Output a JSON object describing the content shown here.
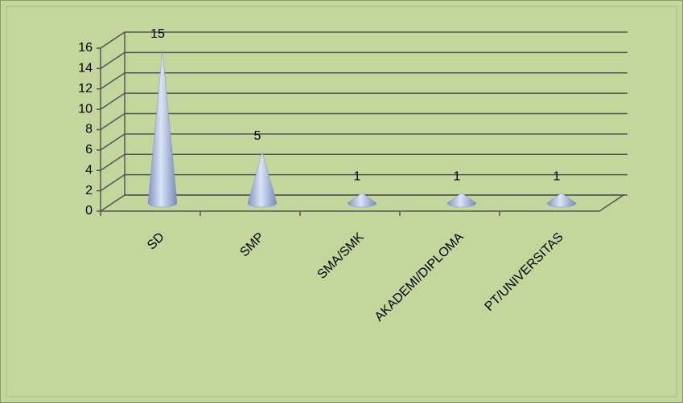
{
  "chart_data": {
    "type": "cone",
    "categories": [
      "SD",
      "SMP",
      "SMA/SMK",
      "AKADEMI/DIPLOMA",
      "PT/UNIVERSITAS"
    ],
    "values": [
      15,
      5,
      1,
      1,
      1
    ],
    "color": "#9fb3de",
    "ylim": [
      0,
      16
    ],
    "yticks": [
      0,
      2,
      4,
      6,
      8,
      10,
      12,
      14,
      16
    ],
    "grid": true
  }
}
